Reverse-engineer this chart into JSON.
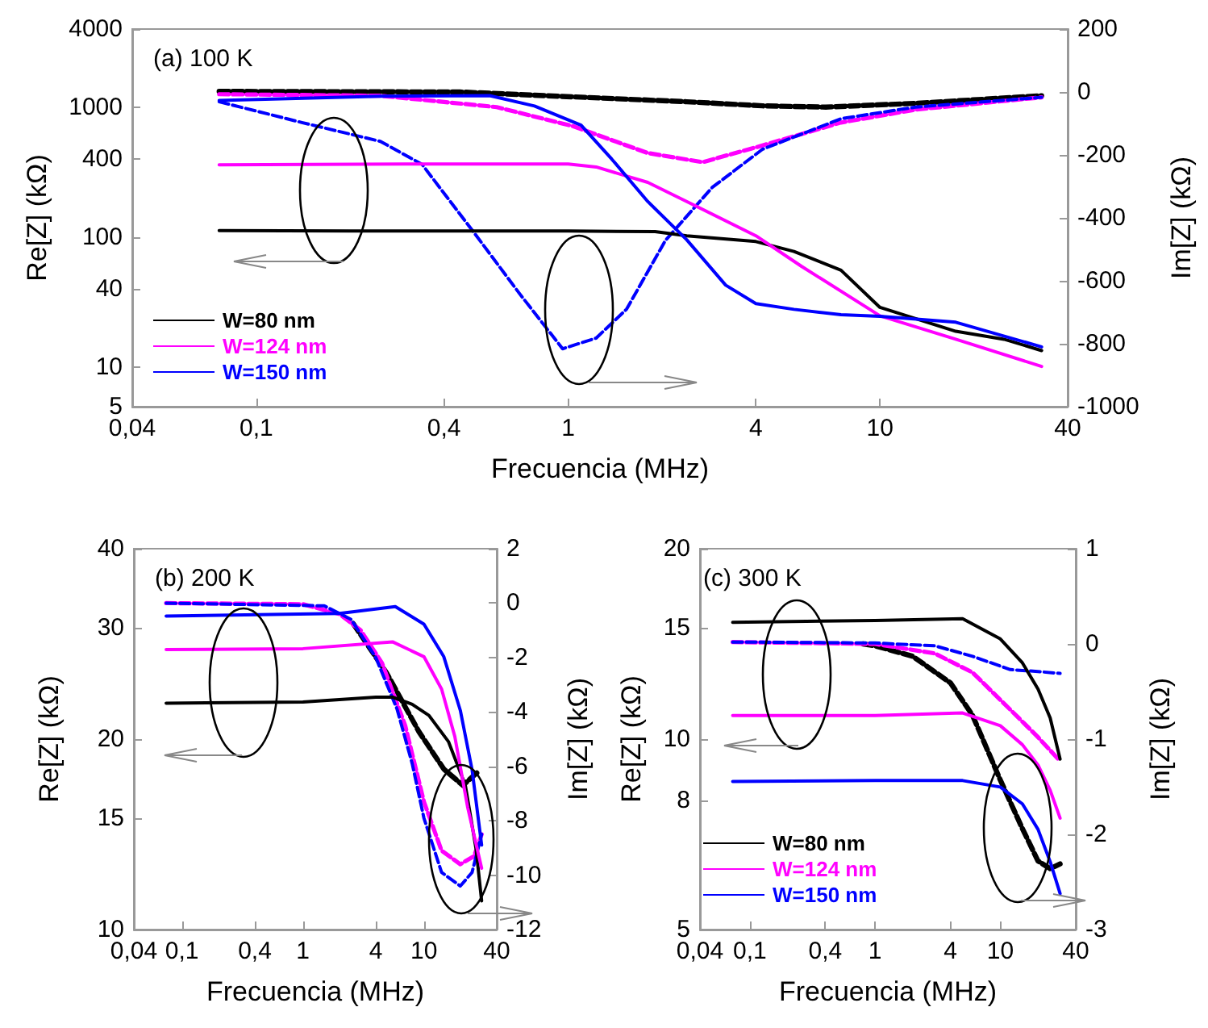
{
  "chart_data": [
    {
      "type": "line",
      "title": "(a) 100 K",
      "xlabel": "Frecuencia (MHz)",
      "ylabel": "Re[Z] (kΩ)",
      "y2label": "Im[Z] (kΩ)",
      "log": "xy",
      "marker": "none",
      "legend": "bottom left",
      "xlim": [
        0.04,
        40
      ],
      "xticks": [
        {
          "value": 0.04,
          "label": "0,04"
        },
        {
          "value": 0.1,
          "label": "0,1"
        },
        {
          "value": 0.4,
          "label": "0,4"
        },
        1,
        4,
        10,
        40
      ],
      "ylim": [
        5,
        4000
      ],
      "yticks": [
        5,
        10,
        40,
        100,
        400,
        1000,
        4000
      ],
      "y2lim": [
        -1000,
        200
      ],
      "y2ticks": [
        -1000,
        -800,
        -600,
        -400,
        -200,
        0,
        200
      ],
      "series": [
        {
          "name": "W=80 nm",
          "color": "#000000",
          "x": [
            0.076,
            0.2,
            0.5,
            1,
            1.9,
            2.4,
            4,
            5.3,
            7.5,
            10,
            17.5,
            25,
            33
          ],
          "values": [
            113,
            112,
            112,
            112,
            111,
            103,
            93,
            78,
            56,
            29,
            19,
            16.5,
            13.5
          ]
        },
        {
          "name": "W=124 nm",
          "color": "#ff00ff",
          "x": [
            0.076,
            0.3,
            1,
            1.23,
            1.8,
            2.4,
            4,
            5.6,
            10,
            17.5,
            33
          ],
          "values": [
            362,
            367,
            367,
            348,
            265,
            189,
            103,
            60,
            25,
            16.5,
            10.2
          ]
        },
        {
          "name": "W=150 nm",
          "color": "#0000ff",
          "x": [
            0.076,
            0.25,
            0.56,
            0.78,
            1.1,
            1.38,
            1.8,
            2.4,
            3.2,
            4,
            5.3,
            7.5,
            10,
            17.5,
            33
          ],
          "values": [
            1130,
            1220,
            1230,
            1025,
            730,
            400,
            189,
            96,
            43,
            31,
            28,
            25.5,
            24.8,
            22.3,
            14.4
          ]
        },
        {
          "color": "#000000",
          "axis": "y2",
          "line_style": "dashed",
          "x": [
            0.076,
            0.45,
            2.4,
            4.2,
            6.7,
            13,
            33
          ],
          "values": [
            2,
            0,
            -31,
            -44,
            -48,
            -36,
            -12
          ]
        },
        {
          "color": "#ff00ff",
          "axis": "y2",
          "line_style": "dashed",
          "x": [
            0.076,
            0.25,
            0.59,
            1.04,
            1.8,
            2.7,
            4.2,
            7.5,
            13,
            33
          ],
          "values": [
            -7,
            -12,
            -48,
            -109,
            -194,
            -223,
            -170,
            -97,
            -56,
            -17
          ]
        },
        {
          "color": "#0000ff",
          "axis": "y2",
          "line_style": "dashed",
          "x": [
            0.076,
            0.14,
            0.25,
            0.34,
            0.5,
            0.7,
            0.96,
            1.23,
            1.54,
            2.05,
            2.9,
            4.2,
            7.5,
            13,
            33
          ],
          "values": [
            -31,
            -97,
            -157,
            -230,
            -448,
            -642,
            -816,
            -782,
            -690,
            -472,
            -303,
            -182,
            -85,
            -48,
            -17
          ]
        }
      ]
    },
    {
      "type": "line",
      "title": "(b) 200 K",
      "xlabel": "Frecuencia (MHz)",
      "ylabel": "Re[Z] (kΩ)",
      "y2label": "Im[Z] (kΩ)",
      "log": "xy",
      "marker": "none",
      "xlim": [
        0.04,
        40
      ],
      "xticks": [
        {
          "value": 0.04,
          "label": "0,04"
        },
        {
          "value": 0.1,
          "label": "0,1"
        },
        {
          "value": 0.4,
          "label": "0,4"
        },
        1,
        4,
        10,
        40
      ],
      "ylim": [
        10,
        40
      ],
      "yticks": [
        10,
        15,
        20,
        30,
        40
      ],
      "y2lim": [
        -12,
        2
      ],
      "y2ticks": [
        -12,
        -10,
        -8,
        -6,
        -4,
        -2,
        0,
        2
      ],
      "series": [
        {
          "color": "#000000",
          "x": [
            0.074,
            1,
            4,
            5.5,
            8,
            11,
            16,
            22,
            27,
            30
          ],
          "values": [
            22.8,
            22.9,
            23.3,
            23.3,
            22.7,
            21.8,
            19.8,
            16.9,
            13.4,
            11.1
          ]
        },
        {
          "color": "#ff00ff",
          "x": [
            0.074,
            1,
            5.5,
            10,
            14,
            18,
            23,
            30
          ],
          "values": [
            27.7,
            27.8,
            28.5,
            27.0,
            24.0,
            20.2,
            15.6,
            12.5
          ]
        },
        {
          "color": "#0000ff",
          "x": [
            0.074,
            2,
            5.8,
            10,
            14.6,
            20,
            25,
            30
          ],
          "values": [
            31.3,
            31.6,
            32.4,
            30.4,
            27.0,
            22.2,
            17.9,
            13.6
          ]
        },
        {
          "color": "#000000",
          "axis": "y2",
          "line_style": "dashed",
          "x": [
            2.6,
            4.9,
            9.1,
            14.6,
            21,
            28
          ],
          "values": [
            -0.75,
            -2.56,
            -4.73,
            -6.1,
            -6.7,
            -6.2
          ]
        },
        {
          "color": "#ff00ff",
          "axis": "y2",
          "line_style": "dashed",
          "x": [
            0.074,
            1,
            2,
            3,
            4.5,
            7,
            10,
            14,
            20,
            26,
            30
          ],
          "values": [
            0,
            -0.04,
            -0.4,
            -1.0,
            -2.2,
            -4.5,
            -7.3,
            -9.1,
            -9.6,
            -9.3,
            -8.5
          ]
        },
        {
          "color": "#0000ff",
          "axis": "y2",
          "line_style": "dashed",
          "x": [
            0.074,
            1.5,
            2.5,
            4,
            6,
            8,
            10,
            14,
            20,
            25,
            30
          ],
          "values": [
            0,
            -0.1,
            -0.6,
            -2.0,
            -3.9,
            -5.9,
            -7.9,
            -9.9,
            -10.4,
            -9.9,
            -8.5
          ]
        }
      ]
    },
    {
      "type": "line",
      "title": "(c) 300 K",
      "xlabel": "Frecuencia (MHz)",
      "ylabel": "Re[Z] (kΩ)",
      "y2label": "Im[Z] (kΩ)",
      "log": "xy",
      "marker": "none",
      "legend": "bottom left",
      "xlim": [
        0.04,
        40
      ],
      "xticks": [
        {
          "value": 0.04,
          "label": "0,04"
        },
        {
          "value": 0.1,
          "label": "0,1"
        },
        {
          "value": 0.4,
          "label": "0,4"
        },
        1,
        4,
        10,
        40
      ],
      "ylim": [
        5,
        20
      ],
      "yticks": [
        5,
        8,
        10,
        15,
        20
      ],
      "y2lim": [
        -3,
        1
      ],
      "y2ticks": [
        -3,
        -2,
        -1,
        0,
        1
      ],
      "series": [
        {
          "name": "W=80 nm",
          "color": "#000000",
          "x": [
            0.073,
            1,
            5,
            10,
            15,
            20,
            25,
            30
          ],
          "values": [
            15.3,
            15.4,
            15.5,
            14.4,
            13.2,
            12.0,
            10.8,
            9.3
          ]
        },
        {
          "name": "W=124 nm",
          "color": "#ff00ff",
          "x": [
            0.073,
            1,
            5,
            10,
            15,
            20,
            25,
            30
          ],
          "values": [
            10.9,
            10.9,
            11.0,
            10.5,
            9.8,
            9.1,
            8.3,
            7.5
          ]
        },
        {
          "name": "W=150 nm",
          "color": "#0000ff",
          "x": [
            0.073,
            1,
            5,
            10,
            15,
            20,
            25,
            30
          ],
          "values": [
            8.57,
            8.6,
            8.6,
            8.4,
            7.9,
            7.2,
            6.4,
            5.7
          ]
        },
        {
          "color": "#000000",
          "axis": "y2",
          "line_style": "dashed",
          "x": [
            0.8,
            1,
            2,
            4,
            6,
            10,
            15,
            20,
            25,
            30
          ],
          "values": [
            0,
            -0.02,
            -0.13,
            -0.41,
            -0.75,
            -1.43,
            -1.94,
            -2.28,
            -2.36,
            -2.31
          ]
        },
        {
          "color": "#ff00ff",
          "axis": "y2",
          "line_style": "dashed",
          "x": [
            0.073,
            1,
            3,
            6,
            12,
            20,
            30
          ],
          "values": [
            0.02,
            0,
            -0.1,
            -0.3,
            -0.69,
            -0.98,
            -1.23
          ]
        },
        {
          "color": "#0000ff",
          "axis": "y2",
          "line_style": "dashed",
          "x": [
            0.073,
            1,
            3,
            6,
            12,
            20,
            30
          ],
          "values": [
            0.02,
            0.01,
            -0.02,
            -0.13,
            -0.27,
            -0.29,
            -0.31
          ]
        }
      ]
    }
  ]
}
